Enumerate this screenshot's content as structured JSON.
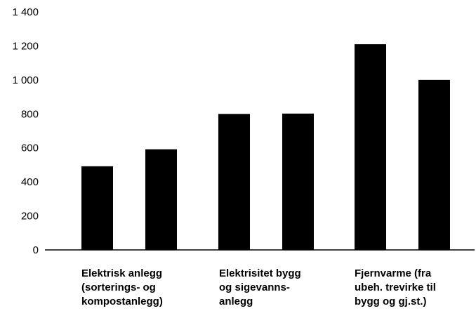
{
  "chart_data": {
    "type": "bar",
    "title": "",
    "xlabel": "",
    "ylabel": "",
    "ylim": [
      0,
      1400
    ],
    "yticks": [
      0,
      200,
      400,
      600,
      800,
      1000,
      1200,
      1400
    ],
    "ytick_labels": [
      "0",
      "200",
      "400",
      "600",
      "800",
      "1 000",
      "1 200",
      "1 400"
    ],
    "grid": false,
    "legend": "none",
    "bar_color": "#000000",
    "groups": [
      {
        "label_lines": [
          "Elektrisk anlegg",
          "(sorterings- og",
          "kompostanlegg)"
        ],
        "values": [
          492,
          592
        ]
      },
      {
        "label_lines": [
          "Elektrisitet bygg",
          "og sigevanns-",
          "anlegg"
        ],
        "values": [
          800,
          802
        ]
      },
      {
        "label_lines": [
          "Fjernvarme (fra",
          "ubeh. trevirke til",
          "bygg og gj.st.)"
        ],
        "values": [
          1210,
          1000
        ]
      }
    ]
  }
}
